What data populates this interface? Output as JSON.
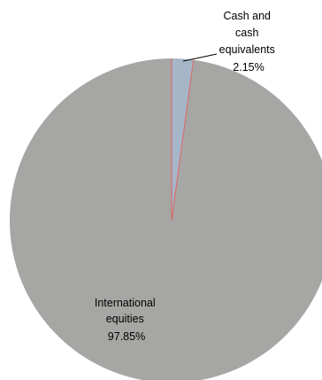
{
  "chart_data": {
    "type": "pie",
    "title": "",
    "start_angle_deg": 0,
    "direction": "clockwise",
    "slices": [
      {
        "label_lines": [
          "Cash and",
          "cash",
          "equivalents"
        ],
        "percent_label": "2.15%",
        "value": 2.15,
        "color": "#A5B6C8",
        "border_color": "#4472C4"
      },
      {
        "label_lines": [
          "International",
          "equities"
        ],
        "percent_label": "97.85%",
        "value": 97.85,
        "color": "#A6A6A4",
        "border_color": "#E06666"
      }
    ]
  }
}
